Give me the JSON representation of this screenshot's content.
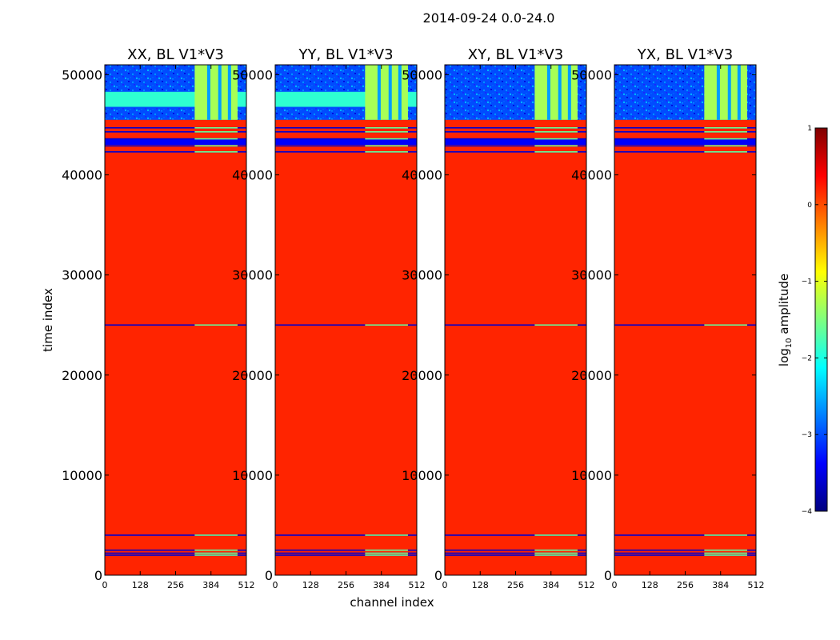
{
  "chart_data": {
    "type": "heatmap",
    "title": "2014-09-24 0.0-24.0",
    "xlabel": "channel index",
    "ylabel": "time index",
    "xlim": [
      0,
      512
    ],
    "ylim": [
      0,
      51000
    ],
    "xticks": [
      "0",
      "128",
      "256",
      "384",
      "512"
    ],
    "yticks": [
      "0",
      "10000",
      "20000",
      "30000",
      "40000",
      "50000"
    ],
    "panels": [
      {
        "title": "XX, BL V1*V3",
        "noise_band": [
          46800,
          48300
        ]
      },
      {
        "title": "YY, BL V1*V3",
        "noise_band": [
          46800,
          48300
        ]
      },
      {
        "title": "XY, BL V1*V3",
        "noise_band": null
      },
      {
        "title": "YX, BL V1*V3",
        "noise_band": null
      }
    ],
    "background_level": 0.2,
    "noisy_block": {
      "y_range": [
        45500,
        51000
      ],
      "level": -3.2
    },
    "bright_channel_band": {
      "x_range": [
        325,
        480
      ],
      "level": -1.3
    },
    "flag_lines_y": [
      2000,
      2200,
      2500,
      4000,
      25000,
      42300,
      42900,
      43600,
      44300,
      44700
    ],
    "dark_band_y": [
      43000,
      43600
    ],
    "colorbar": {
      "label": "log10 amplitude",
      "min": -4,
      "max": 1,
      "ticks": [
        "−4",
        "−3",
        "−2",
        "−1",
        "0",
        "1"
      ],
      "colors": [
        "#00007f",
        "#0000ff",
        "#007fff",
        "#00ffff",
        "#7fff7f",
        "#ffff00",
        "#ff7f00",
        "#ff0000",
        "#7f0000"
      ]
    }
  }
}
